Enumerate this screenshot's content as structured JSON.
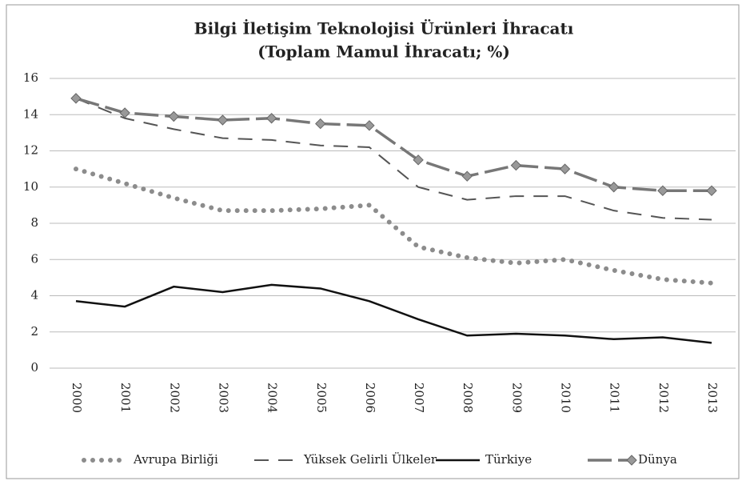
{
  "chart_data": {
    "type": "line",
    "title": "Bilgi İletişim Teknolojisi Ürünleri İhracatı",
    "subtitle": "(Toplam Mamul İhracatı; %)",
    "categories": [
      "2000",
      "2001",
      "2002",
      "2003",
      "2004",
      "2005",
      "2006",
      "2007",
      "2008",
      "2009",
      "2010",
      "2011",
      "2012",
      "2013"
    ],
    "series": [
      {
        "name": "Avrupa Birliği",
        "color": "#8c8c8c",
        "line_style": "dotted",
        "values": [
          11.0,
          10.2,
          9.4,
          8.7,
          8.7,
          8.8,
          9.0,
          6.7,
          6.1,
          5.8,
          6.0,
          5.4,
          4.9,
          4.7
        ]
      },
      {
        "name": "Yüksek Gelirli Ülkeler",
        "color": "#555555",
        "line_style": "dashed",
        "values": [
          14.9,
          13.8,
          13.2,
          12.7,
          12.6,
          12.3,
          12.2,
          10.0,
          9.3,
          9.5,
          9.5,
          8.7,
          8.3,
          8.2
        ]
      },
      {
        "name": "Türkiye",
        "color": "#111111",
        "line_style": "solid",
        "values": [
          3.7,
          3.4,
          4.5,
          4.2,
          4.6,
          4.4,
          3.7,
          2.7,
          1.8,
          1.9,
          1.8,
          1.6,
          1.7,
          1.4
        ]
      },
      {
        "name": "Dünya",
        "color": "#777777",
        "line_style": "longdash",
        "marker": "diamond",
        "values": [
          14.9,
          14.1,
          13.9,
          13.7,
          13.8,
          13.5,
          13.4,
          11.5,
          10.6,
          11.2,
          11.0,
          10.0,
          9.8,
          9.8
        ]
      }
    ],
    "ylim": [
      0,
      16
    ],
    "yticks": [
      0,
      2,
      4,
      6,
      8,
      10,
      12,
      14,
      16
    ],
    "grid": true,
    "legend": "bottom"
  }
}
